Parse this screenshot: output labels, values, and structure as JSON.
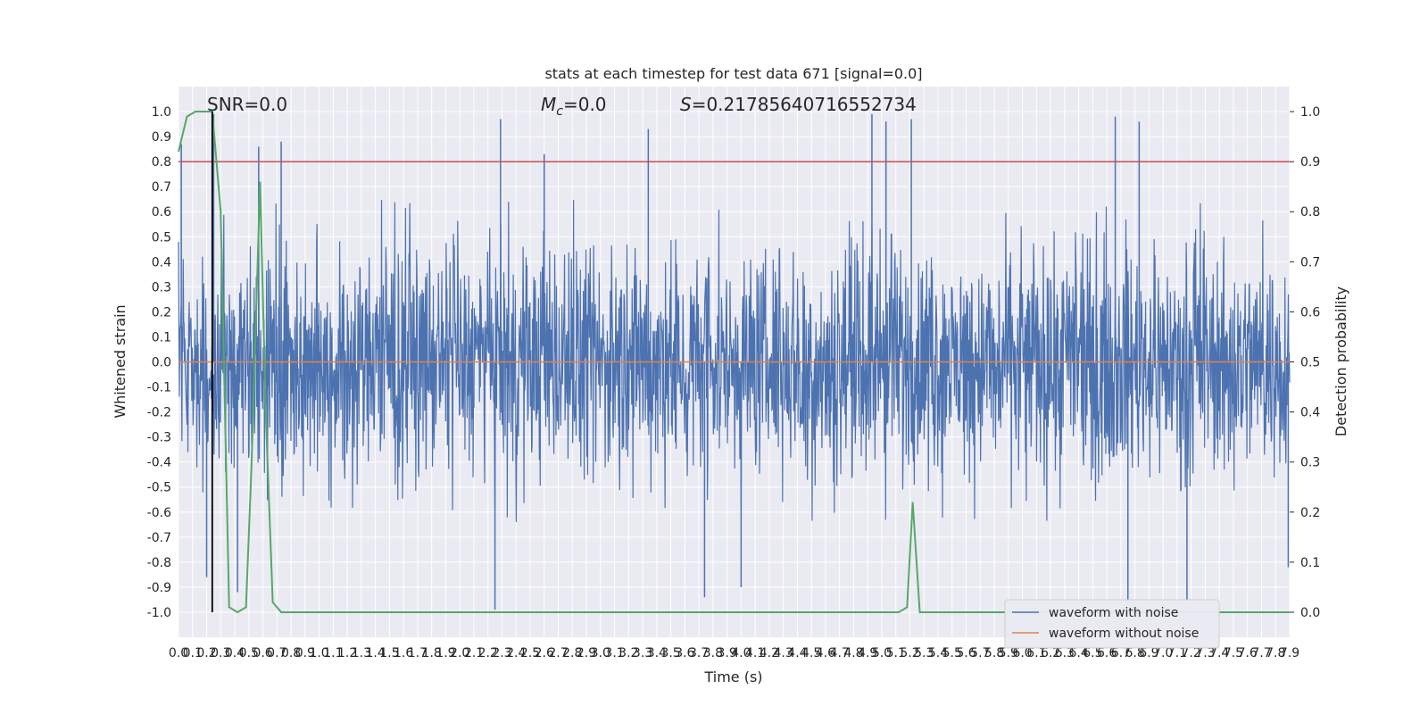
{
  "chart_data": {
    "type": "line",
    "title": "stats at each timestep for test data 671 [signal=0.0]",
    "xlabel": "Time (s)",
    "ylabel": "Whitened strain",
    "y2label": "Detection probability",
    "xlim": [
      0.0,
      7.9
    ],
    "ylim": [
      -1.1,
      1.1
    ],
    "y2lim": [
      -0.05,
      1.05
    ],
    "x_ticks": [
      "0.0",
      "0.1",
      "0.2",
      "0.3",
      "0.4",
      "0.5",
      "0.6",
      "0.7",
      "0.8",
      "0.9",
      "1.0",
      "1.1",
      "1.2",
      "1.3",
      "1.4",
      "1.5",
      "1.6",
      "1.7",
      "1.8",
      "1.9",
      "2.0",
      "2.1",
      "2.2",
      "2.3",
      "2.4",
      "2.5",
      "2.6",
      "2.7",
      "2.8",
      "2.9",
      "3.0",
      "3.1",
      "3.2",
      "3.3",
      "3.4",
      "3.5",
      "3.6",
      "3.7",
      "3.8",
      "3.9",
      "4.0",
      "4.1",
      "4.2",
      "4.3",
      "4.4",
      "4.5",
      "4.6",
      "4.7",
      "4.8",
      "4.9",
      "5.0",
      "5.1",
      "5.2",
      "5.3",
      "5.4",
      "5.5",
      "5.6",
      "5.7",
      "5.8",
      "5.9",
      "6.0",
      "6.1",
      "6.2",
      "6.3",
      "6.4",
      "6.5",
      "6.6",
      "6.7",
      "6.8",
      "6.9",
      "7.0",
      "7.1",
      "7.2",
      "7.3",
      "7.4",
      "7.5",
      "7.6",
      "7.7",
      "7.8",
      "7.9"
    ],
    "y_ticks": [
      "1.0",
      "0.9",
      "0.8",
      "0.7",
      "0.6",
      "0.5",
      "0.4",
      "0.3",
      "0.2",
      "0.1",
      "0.0",
      "-0.1",
      "-0.2",
      "-0.3",
      "-0.4",
      "-0.5",
      "-0.6",
      "-0.7",
      "-0.8",
      "-0.9",
      "-1.0"
    ],
    "y2_ticks": [
      "1.0",
      "0.9",
      "0.8",
      "0.7",
      "0.6",
      "0.5",
      "0.4",
      "0.3",
      "0.2",
      "0.1",
      "0.0"
    ],
    "grid": true,
    "legend_position": "lower-right",
    "annotations": {
      "snr": "SNR=0.0",
      "mc": "=0.0",
      "mc_symbol": "M",
      "mc_sub": "c",
      "s": "=0.21785640716552734",
      "s_symbol": "S"
    },
    "threshold": {
      "value": 0.9,
      "axis": "right",
      "color": "#c44e52"
    },
    "marker_time": 0.24,
    "series": [
      {
        "name": "waveform with noise",
        "axis": "left",
        "color": "#4c72b0",
        "kind": "noise",
        "typical_amplitude": [
          -0.4,
          0.4
        ],
        "peaks": [
          {
            "x": 0.02,
            "y": 0.87
          },
          {
            "x": 0.2,
            "y": -0.86
          },
          {
            "x": 0.25,
            "y": 0.99
          },
          {
            "x": 0.42,
            "y": -0.92
          },
          {
            "x": 0.57,
            "y": 0.86
          },
          {
            "x": 0.73,
            "y": 0.88
          },
          {
            "x": 2.29,
            "y": 0.97
          },
          {
            "x": 2.25,
            "y": -0.99
          },
          {
            "x": 2.6,
            "y": 0.83
          },
          {
            "x": 3.34,
            "y": 0.93
          },
          {
            "x": 3.74,
            "y": -0.94
          },
          {
            "x": 4.0,
            "y": -0.9
          },
          {
            "x": 4.93,
            "y": 0.99
          },
          {
            "x": 5.03,
            "y": 0.96
          },
          {
            "x": 5.21,
            "y": 0.97
          },
          {
            "x": 6.66,
            "y": 0.98
          },
          {
            "x": 6.83,
            "y": 0.96
          },
          {
            "x": 6.75,
            "y": -0.97
          },
          {
            "x": 7.17,
            "y": -0.95
          },
          {
            "x": 7.89,
            "y": -0.82
          }
        ]
      },
      {
        "name": "waveform without noise",
        "axis": "left",
        "color": "#dd8452",
        "kind": "line",
        "x": [
          0.0,
          7.9
        ],
        "y": [
          0.0,
          0.0
        ]
      },
      {
        "name": "detection probability",
        "axis": "right",
        "color": "#55a868",
        "kind": "line",
        "x": [
          0.0,
          0.06,
          0.12,
          0.2,
          0.24,
          0.3,
          0.36,
          0.42,
          0.48,
          0.52,
          0.58,
          0.62,
          0.67,
          0.73,
          0.85,
          1.0,
          1.1,
          2.0,
          3.0,
          4.0,
          5.0,
          5.12,
          5.18,
          5.22,
          5.27,
          5.35,
          6.0,
          7.0,
          7.9
        ],
        "y": [
          0.92,
          0.99,
          1.0,
          1.0,
          1.0,
          0.8,
          0.01,
          0.0,
          0.01,
          0.3,
          0.86,
          0.4,
          0.02,
          0.0,
          0.0,
          0.0,
          0.0,
          0.0,
          0.0,
          0.0,
          0.0,
          0.0,
          0.01,
          0.22,
          0.0,
          0.0,
          0.0,
          0.0,
          0.0
        ]
      }
    ]
  },
  "legend": {
    "items": [
      {
        "label": "waveform with noise",
        "color": "#4c72b0"
      },
      {
        "label": "waveform without noise",
        "color": "#dd8452"
      }
    ]
  }
}
